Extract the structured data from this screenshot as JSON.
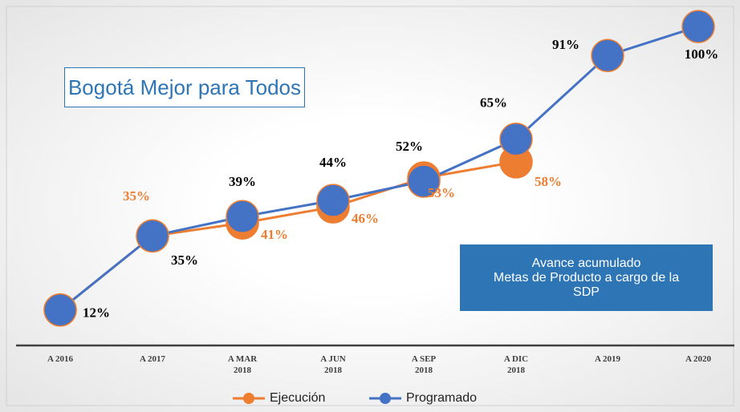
{
  "chart_data": {
    "type": "line",
    "title": "Bogotá Mejor para Todos",
    "annotation": [
      "Avance acumulado",
      "Metas de Producto a cargo de la",
      "SDP"
    ],
    "categories": [
      "A 2016",
      "A 2017",
      "A MAR 2018",
      "A JUN 2018",
      "A SEP 2018",
      "A DIC 2018",
      "A 2019",
      "A 2020"
    ],
    "series": [
      {
        "name": "Ejecución",
        "color": "#ed7d31",
        "values": [
          12,
          35,
          39,
          44,
          53,
          58,
          null,
          null
        ],
        "value_labels": [
          "12%",
          "35%",
          "39%",
          "44%",
          "53%",
          "58%",
          null,
          null
        ],
        "label_colors": [
          "#000000",
          "#ed7d31",
          "#000000",
          "#000000",
          "#ed7d31",
          "#ed7d31",
          null,
          null
        ]
      },
      {
        "name": "Programado",
        "color": "#4472c4",
        "values": [
          12,
          35,
          41,
          46,
          52,
          65,
          91,
          100
        ],
        "value_labels": [
          "12%",
          "35%",
          "41%",
          "46%",
          "52%",
          "65%",
          "91%",
          "100%"
        ],
        "label_colors": [
          "#000000",
          "#000000",
          "#ed7d31",
          "#ed7d31",
          "#000000",
          "#000000",
          "#000000",
          "#000000"
        ]
      }
    ],
    "ylim": [
      0,
      106
    ],
    "legend": "bottom"
  }
}
